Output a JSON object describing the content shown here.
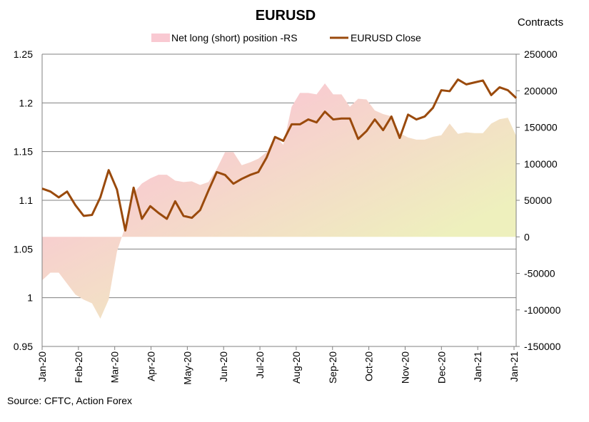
{
  "chart_data": {
    "type": "line",
    "title": "EURUSD",
    "right_axis_label": "Contracts",
    "source": "Source: CFTC, Action Forex",
    "legend": {
      "placement": "top-center"
    },
    "grid": true,
    "x_tick_labels": [
      "Jan-20",
      "Feb-20",
      "Mar-20",
      "Apr-20",
      "May-20",
      "Jun-20",
      "Jul-20",
      "Aug-20",
      "Sep-20",
      "Oct-20",
      "Nov-20",
      "Dec-20",
      "Jan-21",
      "Jan-21"
    ],
    "left_axis": {
      "ylim": [
        0.95,
        1.25
      ],
      "ticks": [
        "1.25",
        "1.2",
        "1.15",
        "1.1",
        "1.05",
        "1",
        "0.95"
      ]
    },
    "right_axis": {
      "ylim": [
        -150000,
        250000
      ],
      "ticks": [
        "250000",
        "200000",
        "150000",
        "100000",
        "50000",
        "0",
        "-50000",
        "-100000",
        "-150000"
      ]
    },
    "x": [
      "2019-12-31",
      "2020-01-07",
      "2020-01-14",
      "2020-01-21",
      "2020-01-28",
      "2020-02-04",
      "2020-02-11",
      "2020-02-18",
      "2020-02-25",
      "2020-03-03",
      "2020-03-10",
      "2020-03-17",
      "2020-03-24",
      "2020-03-31",
      "2020-04-07",
      "2020-04-14",
      "2020-04-21",
      "2020-04-28",
      "2020-05-05",
      "2020-05-12",
      "2020-05-19",
      "2020-05-26",
      "2020-06-02",
      "2020-06-09",
      "2020-06-16",
      "2020-06-23",
      "2020-06-30",
      "2020-07-07",
      "2020-07-14",
      "2020-07-21",
      "2020-07-28",
      "2020-08-04",
      "2020-08-11",
      "2020-08-18",
      "2020-08-25",
      "2020-09-01",
      "2020-09-08",
      "2020-09-15",
      "2020-09-22",
      "2020-09-29",
      "2020-10-06",
      "2020-10-13",
      "2020-10-20",
      "2020-10-27",
      "2020-11-03",
      "2020-11-10",
      "2020-11-17",
      "2020-11-24",
      "2020-12-01",
      "2020-12-08",
      "2020-12-15",
      "2020-12-22",
      "2020-12-29",
      "2021-01-05",
      "2021-01-12",
      "2021-01-19",
      "2021-01-26",
      "2021-02-02"
    ],
    "series": [
      {
        "name": "Net long (short) position -RS",
        "type": "area",
        "axis": "right",
        "color": "#f9c9d2",
        "color2": "#eef0bd",
        "values": [
          -59500,
          -49000,
          -49000,
          -64000,
          -79000,
          -86000,
          -91000,
          -112000,
          -86000,
          -20000,
          14000,
          60000,
          73000,
          80000,
          85000,
          85000,
          77000,
          75000,
          76000,
          71000,
          75000,
          93000,
          116000,
          116000,
          98000,
          102000,
          107000,
          116000,
          138000,
          126000,
          178000,
          197000,
          197000,
          195000,
          210000,
          195000,
          195000,
          178000,
          189000,
          188000,
          173000,
          168000,
          165000,
          142000,
          136000,
          133000,
          133000,
          137000,
          139000,
          155000,
          141000,
          143000,
          142000,
          142000,
          155000,
          161000,
          163000,
          138000
        ]
      },
      {
        "name": "EURUSD Close",
        "type": "line",
        "axis": "left",
        "color": "#9a4a0c",
        "values": [
          1.112,
          1.109,
          1.103,
          1.109,
          1.095,
          1.084,
          1.085,
          1.103,
          1.131,
          1.111,
          1.069,
          1.113,
          1.081,
          1.094,
          1.087,
          1.081,
          1.099,
          1.084,
          1.082,
          1.09,
          1.11,
          1.129,
          1.126,
          1.117,
          1.122,
          1.126,
          1.129,
          1.144,
          1.165,
          1.161,
          1.178,
          1.178,
          1.183,
          1.18,
          1.191,
          1.183,
          1.184,
          1.184,
          1.163,
          1.171,
          1.183,
          1.172,
          1.186,
          1.164,
          1.188,
          1.183,
          1.186,
          1.195,
          1.213,
          1.212,
          1.224,
          1.219,
          1.221,
          1.223,
          1.208,
          1.216,
          1.213,
          1.205
        ]
      }
    ]
  }
}
